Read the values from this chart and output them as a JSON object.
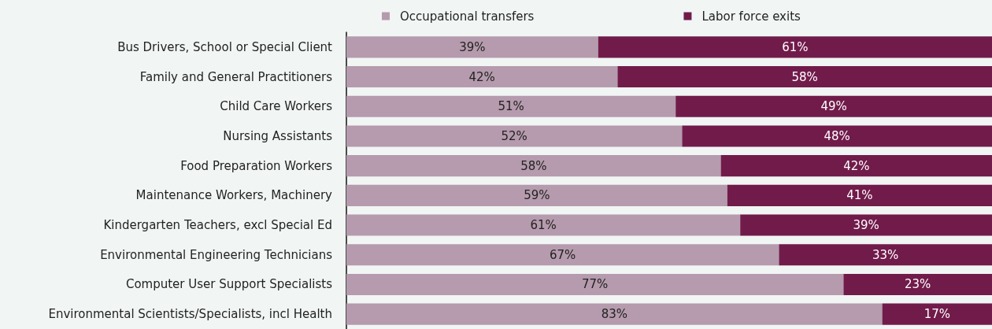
{
  "chart_data": {
    "type": "bar",
    "orientation": "horizontal",
    "stacked": true,
    "categories": [
      "Bus Drivers, School or Special Client",
      "Family and General Practitioners",
      "Child Care Workers",
      "Nursing Assistants",
      "Food Preparation Workers",
      "Maintenance Workers, Machinery",
      "Kindergarten Teachers, excl Special Ed",
      "Environmental Engineering Technicians",
      "Computer User Support Specialists",
      "Environmental Scientists/Specialists, incl Health"
    ],
    "series": [
      {
        "name": "Occupational transfers",
        "color": "#b59bad",
        "values": [
          39,
          42,
          51,
          52,
          58,
          59,
          61,
          67,
          77,
          83
        ],
        "value_labels": [
          "39%",
          "42%",
          "51%",
          "52%",
          "58%",
          "59%",
          "61%",
          "67%",
          "77%",
          "83%"
        ]
      },
      {
        "name": "Labor force exits",
        "color": "#711b4b",
        "values": [
          61,
          58,
          49,
          48,
          42,
          41,
          39,
          33,
          23,
          17
        ],
        "value_labels": [
          "61%",
          "58%",
          "49%",
          "48%",
          "42%",
          "41%",
          "39%",
          "33%",
          "23%",
          "17%"
        ]
      }
    ],
    "xlim": [
      0,
      100
    ],
    "legend": "top",
    "tick_labels": "y"
  }
}
